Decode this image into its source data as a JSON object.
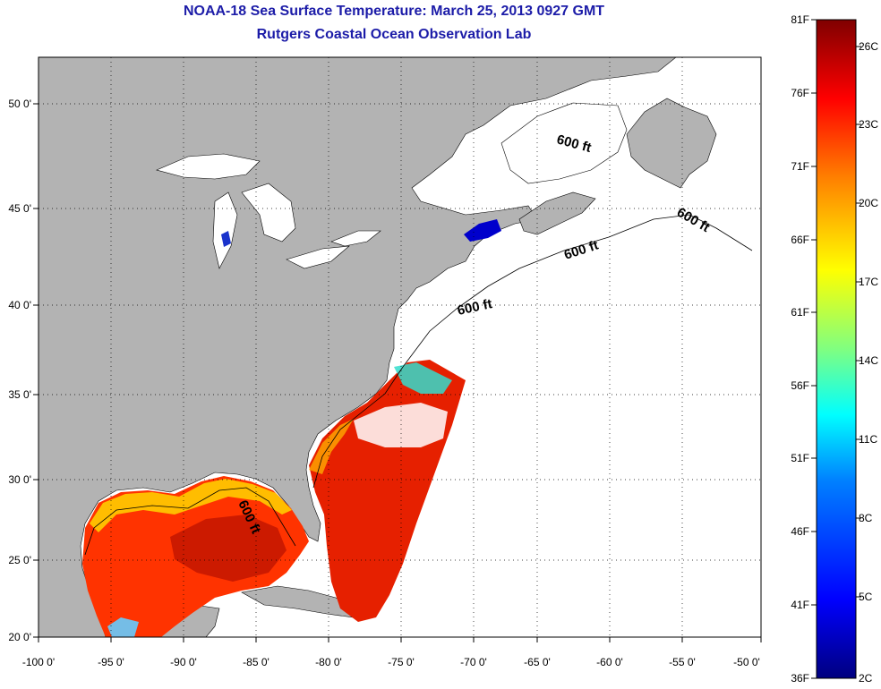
{
  "header": {
    "title": "NOAA-18 Sea Surface Temperature:  March 25, 2013 0927 GMT",
    "subtitle": "Rutgers Coastal Ocean Observation Lab"
  },
  "map": {
    "projection": "lon-lat",
    "lon_range": [
      -100,
      -50
    ],
    "lat_range": [
      20,
      52.5
    ],
    "x_ticks": [
      "-100 0'",
      "-95 0'",
      "-90 0'",
      "-85 0'",
      "-80 0'",
      "-75 0'",
      "-70 0'",
      "-65 0'",
      "-60 0'",
      "-55 0'",
      "-50 0'"
    ],
    "y_ticks": [
      "20 0'",
      "25 0'",
      "30 0'",
      "35 0'",
      "40 0'",
      "45 0'",
      "50 0'"
    ],
    "grid": "dotted",
    "land_color": "#b3b3b3",
    "no_data_color": "#ffffff",
    "isobath_labels": [
      "600 ft",
      "600 ft",
      "600 ft",
      "600 ft",
      "600 ft"
    ]
  },
  "colorbar": {
    "f_labels": [
      "81F",
      "76F",
      "71F",
      "66F",
      "61F",
      "56F",
      "51F",
      "46F",
      "41F",
      "36F"
    ],
    "c_labels": [
      "26C",
      "23C",
      "20C",
      "17C",
      "14C",
      "11C",
      "8C",
      "5C",
      "2C"
    ],
    "colors": [
      "#800000",
      "#ff0000",
      "#ff8000",
      "#ffff00",
      "#80ff80",
      "#00ffff",
      "#0080ff",
      "#0000ff",
      "#000080"
    ]
  }
}
